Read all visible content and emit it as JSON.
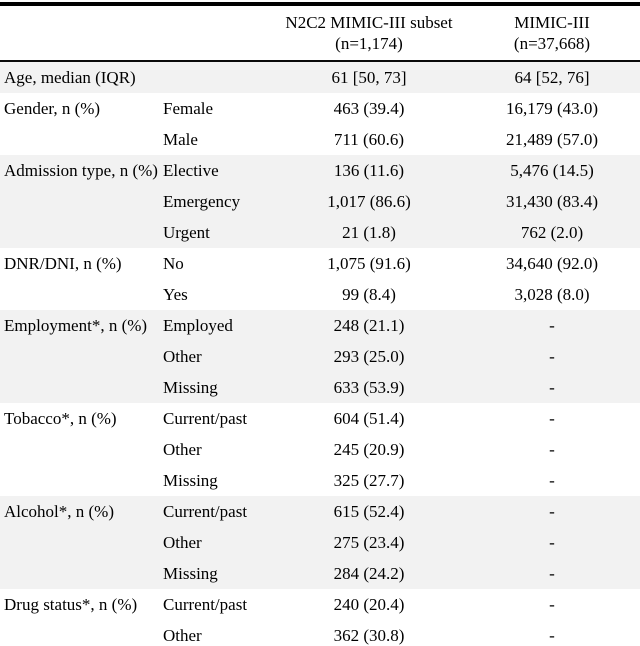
{
  "table": {
    "header": {
      "n2c2_line1": "N2C2 MIMIC-III subset",
      "n2c2_line2": "(n=1,174)",
      "mimic_line1": "MIMIC-III",
      "mimic_line2": "(n=37,668)"
    },
    "groups": [
      {
        "label": "Age, median (IQR)",
        "shaded": true,
        "rows": [
          {
            "sub": "",
            "n2c2": "61 [50, 73]",
            "mimic": "64 [52, 76]"
          }
        ]
      },
      {
        "label": "Gender, n (%)",
        "shaded": false,
        "rows": [
          {
            "sub": "Female",
            "n2c2": "463 (39.4)",
            "mimic": "16,179 (43.0)"
          },
          {
            "sub": "Male",
            "n2c2": "711 (60.6)",
            "mimic": "21,489 (57.0)"
          }
        ]
      },
      {
        "label": "Admission type, n (%)",
        "shaded": true,
        "rows": [
          {
            "sub": "Elective",
            "n2c2": "136 (11.6)",
            "mimic": "5,476 (14.5)"
          },
          {
            "sub": "Emergency",
            "n2c2": "1,017 (86.6)",
            "mimic": "31,430 (83.4)"
          },
          {
            "sub": "Urgent",
            "n2c2": "21 (1.8)",
            "mimic": "762 (2.0)"
          }
        ]
      },
      {
        "label": "DNR/DNI, n (%)",
        "shaded": false,
        "rows": [
          {
            "sub": "No",
            "n2c2": "1,075 (91.6)",
            "mimic": "34,640 (92.0)"
          },
          {
            "sub": "Yes",
            "n2c2": "99 (8.4)",
            "mimic": "3,028 (8.0)"
          }
        ]
      },
      {
        "label": "Employment*, n (%)",
        "shaded": true,
        "rows": [
          {
            "sub": "Employed",
            "n2c2": "248 (21.1)",
            "mimic": "-"
          },
          {
            "sub": "Other",
            "n2c2": "293 (25.0)",
            "mimic": "-"
          },
          {
            "sub": "Missing",
            "n2c2": "633 (53.9)",
            "mimic": "-"
          }
        ]
      },
      {
        "label": "Tobacco*, n (%)",
        "shaded": false,
        "rows": [
          {
            "sub": "Current/past",
            "n2c2": "604 (51.4)",
            "mimic": "-"
          },
          {
            "sub": "Other",
            "n2c2": "245 (20.9)",
            "mimic": "-"
          },
          {
            "sub": "Missing",
            "n2c2": "325 (27.7)",
            "mimic": "-"
          }
        ]
      },
      {
        "label": "Alcohol*, n (%)",
        "shaded": true,
        "rows": [
          {
            "sub": "Current/past",
            "n2c2": "615 (52.4)",
            "mimic": "-"
          },
          {
            "sub": "Other",
            "n2c2": "275 (23.4)",
            "mimic": "-"
          },
          {
            "sub": "Missing",
            "n2c2": "284 (24.2)",
            "mimic": "-"
          }
        ]
      },
      {
        "label": "Drug status*, n (%)",
        "shaded": false,
        "rows": [
          {
            "sub": "Current/past",
            "n2c2": "240 (20.4)",
            "mimic": "-"
          },
          {
            "sub": "Other",
            "n2c2": "362 (30.8)",
            "mimic": "-"
          }
        ]
      }
    ],
    "colors": {
      "stripe": "#f2f2f2",
      "rule": "#000000"
    }
  }
}
